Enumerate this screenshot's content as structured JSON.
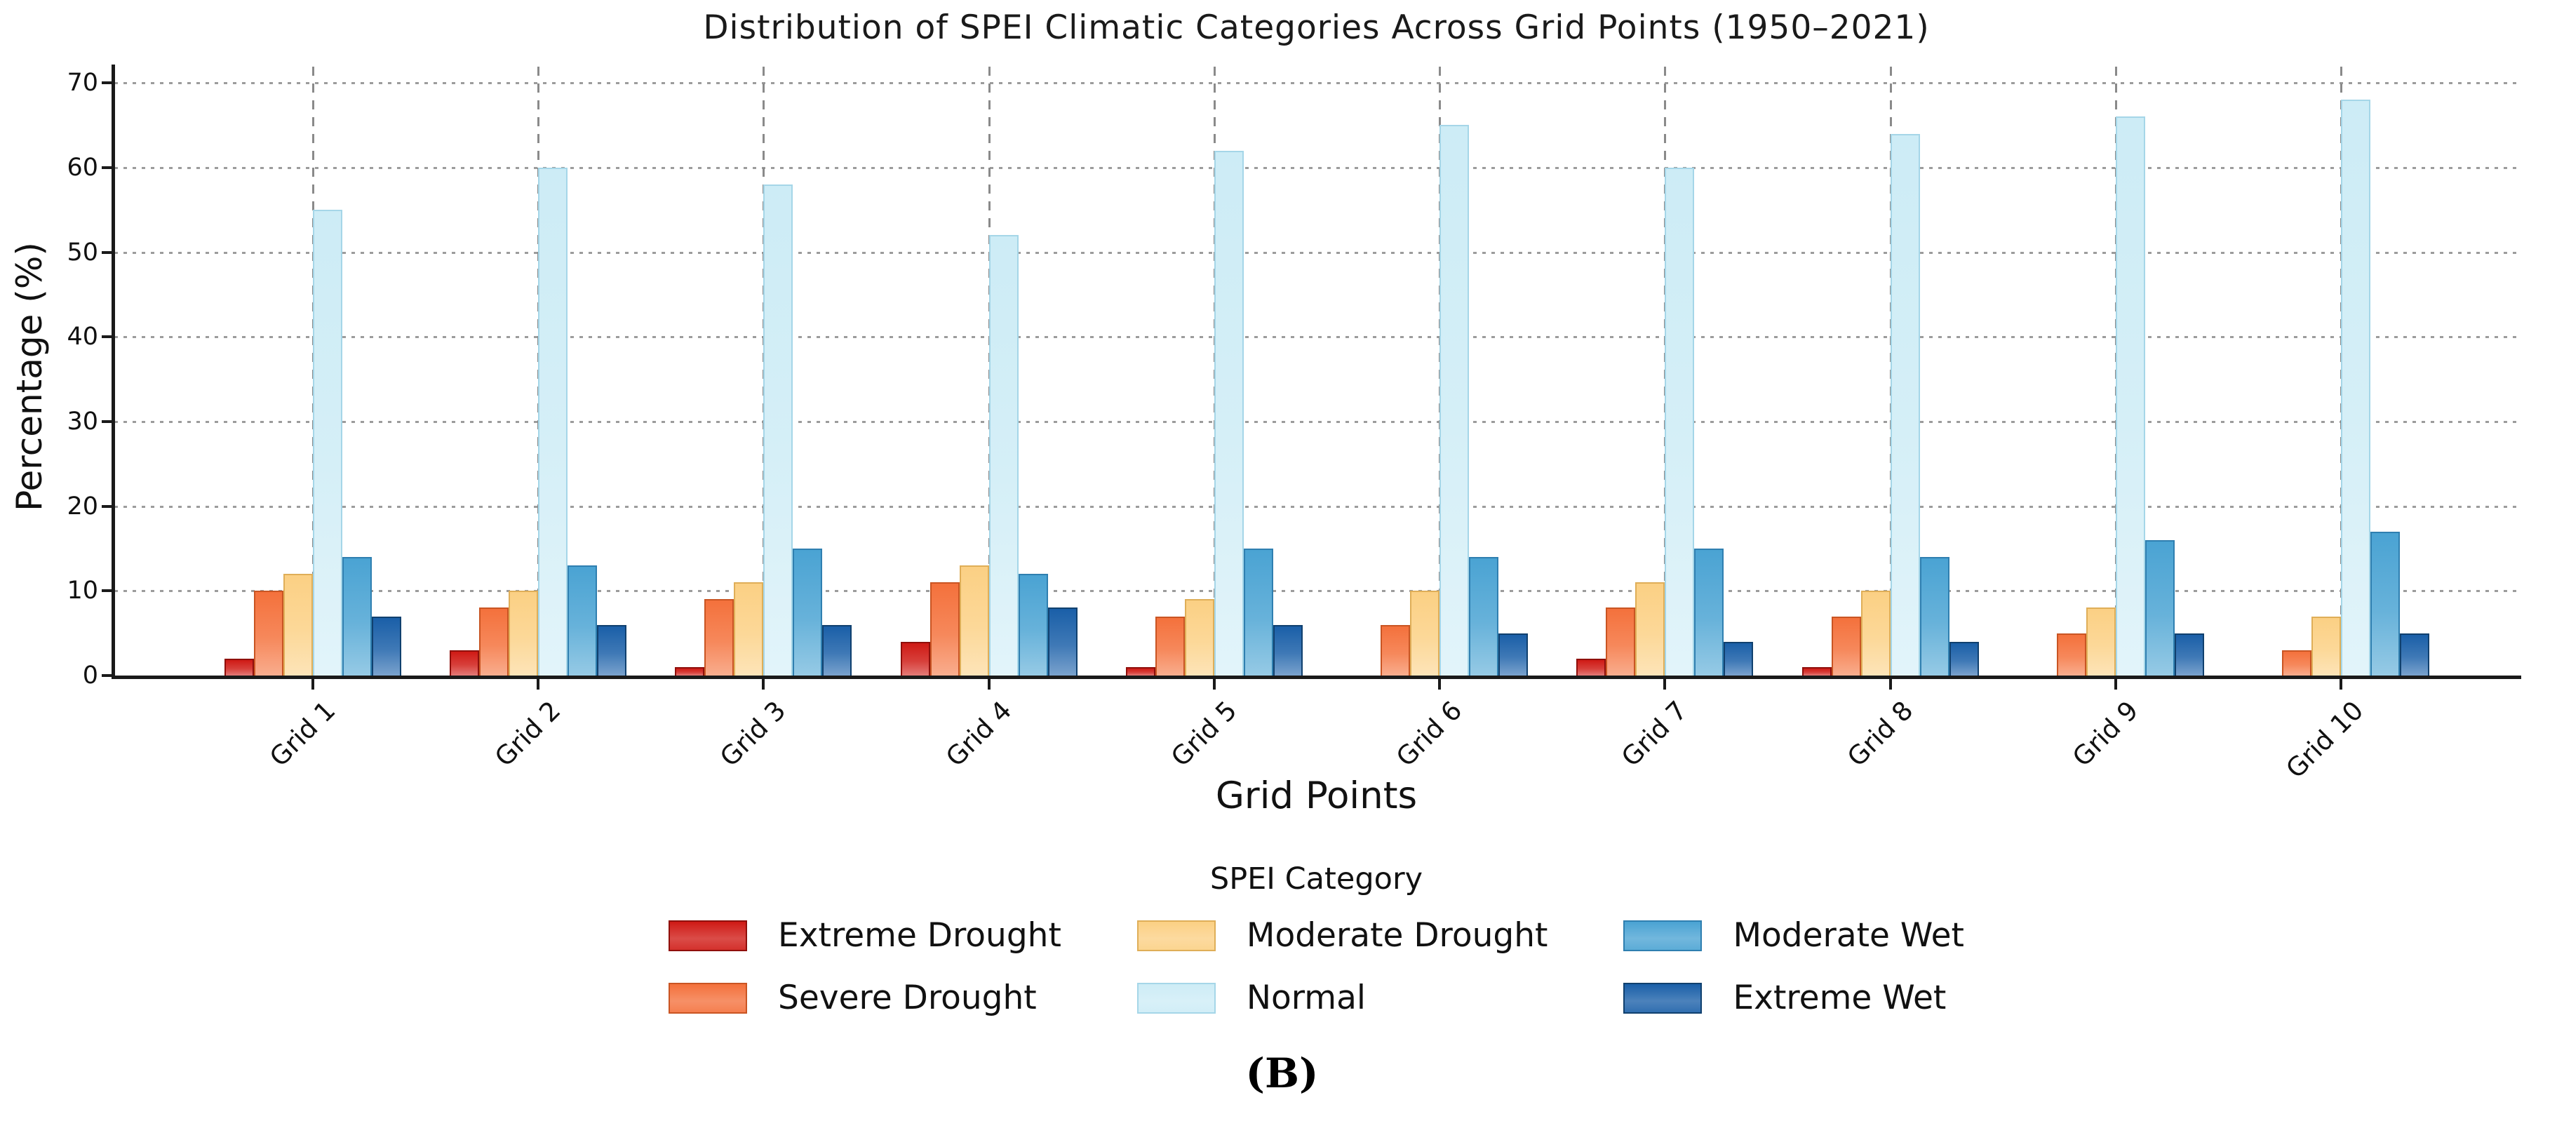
{
  "figure": {
    "caption": "(B)"
  },
  "chart_data": {
    "type": "bar",
    "title": "Distribution of SPEI Climatic Categories Across Grid Points (1950–2021)",
    "xlabel": "Grid Points",
    "ylabel": "Percentage (%)",
    "ylim": [
      0,
      70
    ],
    "yticks": [
      0,
      10,
      20,
      30,
      40,
      50,
      60,
      70
    ],
    "grid": {
      "horizontal": "dotted",
      "vertical": "dashed",
      "color": "#9c9c9c"
    },
    "legend_title": "SPEI Category",
    "legend_position": "below-chart, 3 columns, 2 rows",
    "categories": [
      "Grid 1",
      "Grid 2",
      "Grid 3",
      "Grid 4",
      "Grid 5",
      "Grid 6",
      "Grid 7",
      "Grid 8",
      "Grid 9",
      "Grid 10"
    ],
    "series": [
      {
        "name": "Extreme Drought",
        "color": "#cf1a15",
        "edge": "#8f0f0b",
        "values": [
          2,
          3,
          1,
          4,
          1,
          0,
          2,
          1,
          0,
          0
        ]
      },
      {
        "name": "Severe Drought",
        "color": "#f4713c",
        "edge": "#c95523",
        "values": [
          10,
          8,
          9,
          11,
          7,
          6,
          8,
          7,
          5,
          3
        ]
      },
      {
        "name": "Moderate Drought",
        "color": "#fbd084",
        "edge": "#dfae58",
        "values": [
          12,
          10,
          11,
          13,
          9,
          10,
          11,
          10,
          8,
          7
        ]
      },
      {
        "name": "Normal",
        "color": "#cdecf6",
        "edge": "#a5d6e8",
        "values": [
          55,
          60,
          58,
          52,
          62,
          65,
          60,
          64,
          66,
          68
        ]
      },
      {
        "name": "Moderate Wet",
        "color": "#4aa3d3",
        "edge": "#2f7fb0",
        "values": [
          14,
          13,
          15,
          12,
          15,
          14,
          15,
          14,
          16,
          17
        ]
      },
      {
        "name": "Extreme Wet",
        "color": "#1a5fa8",
        "edge": "#10406e",
        "values": [
          7,
          6,
          6,
          8,
          6,
          5,
          4,
          4,
          5,
          5
        ]
      }
    ],
    "axis_color": "#1a1a1a"
  }
}
